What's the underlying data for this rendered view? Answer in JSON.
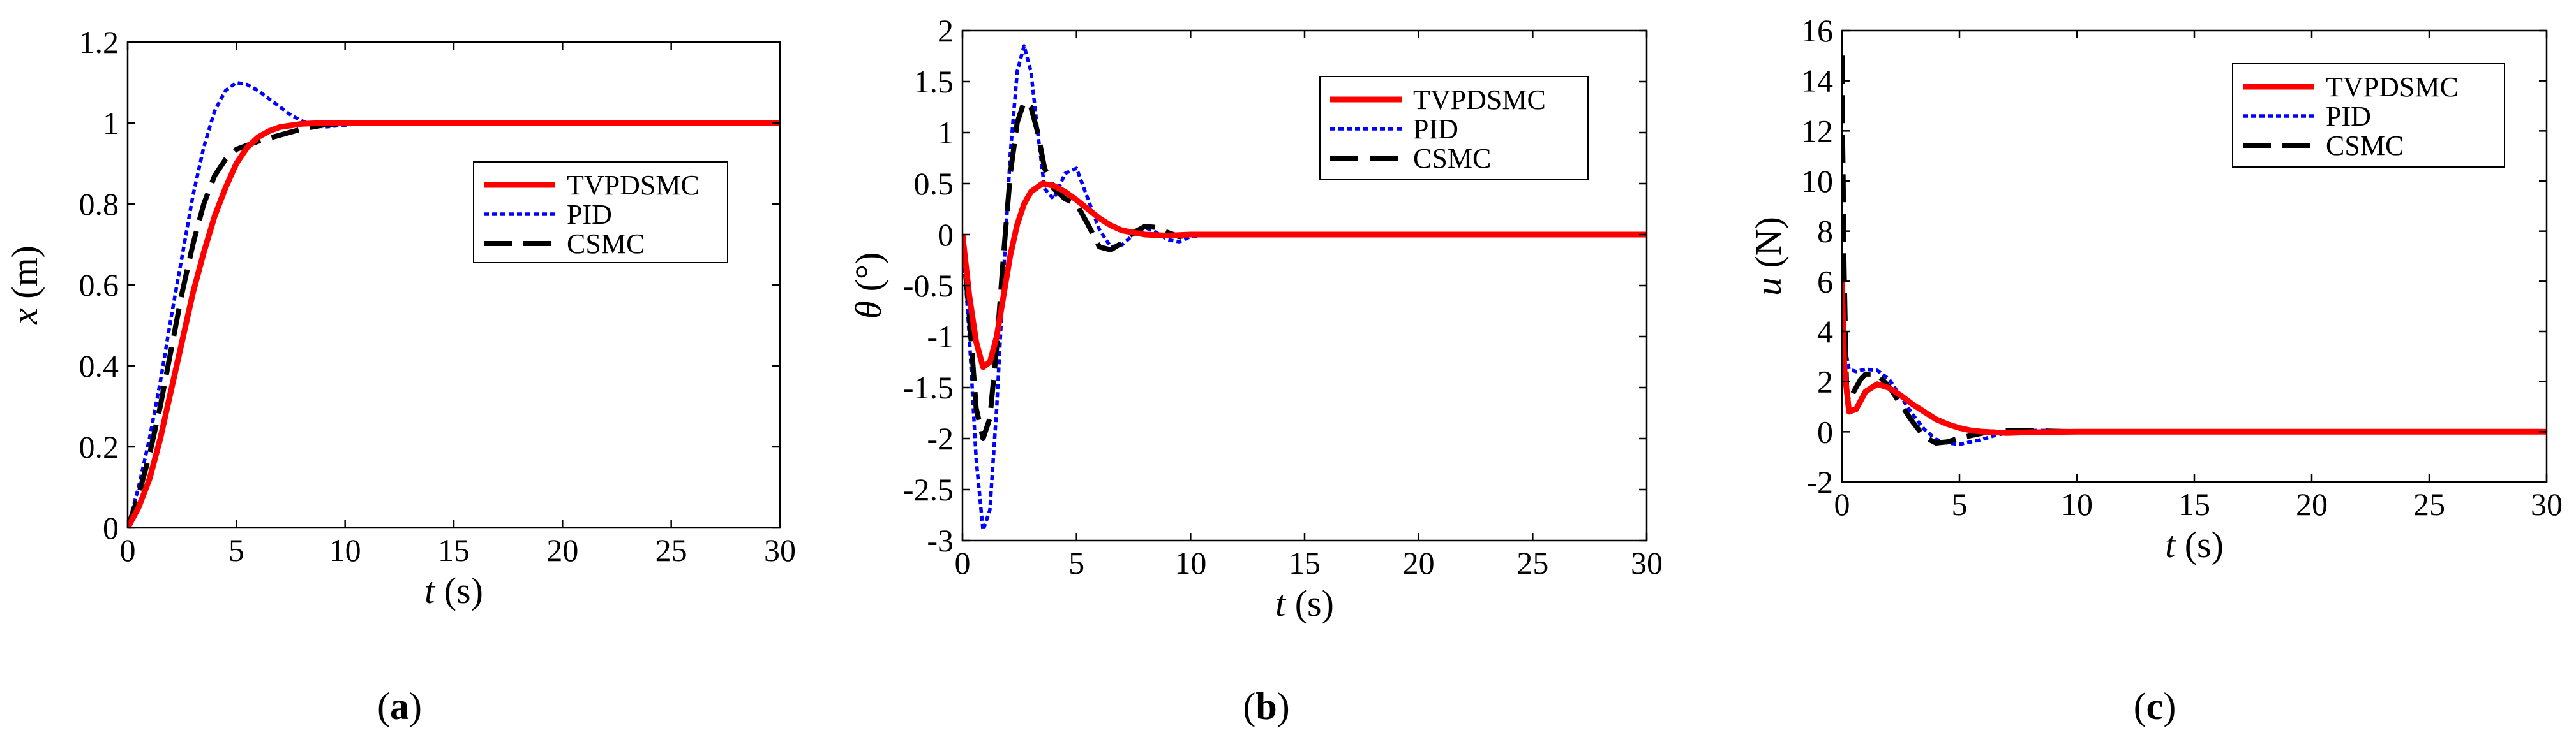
{
  "figure": {
    "colors": {
      "tvpdsmc": "#ff0000",
      "pid": "#0000ff",
      "csmc": "#000000"
    }
  },
  "chart_data": [
    {
      "type": "line",
      "panel": "(a)",
      "panel_letter": "a",
      "xlabel": "t",
      "xunit": "(s)",
      "ylabel": "x",
      "yunit": "(m)",
      "xlim": [
        0,
        30
      ],
      "ylim": [
        0,
        1.2
      ],
      "xticks": [
        0,
        5,
        10,
        15,
        20,
        25,
        30
      ],
      "xtick_labels": [
        "0",
        "5",
        "10",
        "15",
        "20",
        "25",
        "30"
      ],
      "yticks": [
        0,
        0.2,
        0.4,
        0.6,
        0.8,
        1,
        1.2
      ],
      "ytick_labels": [
        "0",
        "0.2",
        "0.4",
        "0.6",
        "0.8",
        "1",
        "1.2"
      ],
      "legend_position": "center-right",
      "series": [
        {
          "name": "TVPDSMC",
          "style": "solid",
          "x": [
            0,
            0.5,
            1,
            1.5,
            2,
            2.5,
            3,
            3.5,
            4,
            4.5,
            5,
            5.5,
            6,
            6.5,
            7,
            8,
            9,
            10,
            12,
            15,
            20,
            25,
            30
          ],
          "y": [
            0,
            0.05,
            0.12,
            0.22,
            0.34,
            0.46,
            0.58,
            0.68,
            0.77,
            0.84,
            0.9,
            0.94,
            0.965,
            0.98,
            0.99,
            0.998,
            1,
            1,
            1,
            1,
            1,
            1,
            1
          ]
        },
        {
          "name": "PID",
          "style": "dotted",
          "x": [
            0,
            0.5,
            1,
            1.5,
            2,
            2.5,
            3,
            3.5,
            4,
            4.5,
            5,
            5.5,
            6,
            6.5,
            7,
            7.5,
            8,
            9,
            10,
            11,
            12,
            15,
            20,
            25,
            30
          ],
          "y": [
            0,
            0.1,
            0.22,
            0.36,
            0.52,
            0.67,
            0.82,
            0.94,
            1.03,
            1.08,
            1.1,
            1.095,
            1.08,
            1.06,
            1.04,
            1.02,
            1.005,
            0.99,
            0.995,
            1,
            1,
            1,
            1,
            1,
            1
          ]
        },
        {
          "name": "CSMC",
          "style": "dashed",
          "x": [
            0,
            0.5,
            1,
            1.5,
            2,
            2.5,
            3,
            3.5,
            4,
            4.5,
            5,
            5.5,
            6,
            7,
            8,
            9,
            10,
            12,
            15,
            20,
            25,
            30
          ],
          "y": [
            0,
            0.08,
            0.18,
            0.3,
            0.44,
            0.58,
            0.7,
            0.8,
            0.87,
            0.91,
            0.935,
            0.945,
            0.955,
            0.97,
            0.985,
            0.995,
            1,
            1,
            1,
            1,
            1,
            1
          ]
        }
      ]
    },
    {
      "type": "line",
      "panel": "(b)",
      "panel_letter": "b",
      "xlabel": "t",
      "xunit": "(s)",
      "ylabel": "θ",
      "yunit": "(°)",
      "xlim": [
        0,
        30
      ],
      "ylim": [
        -3,
        2
      ],
      "xticks": [
        0,
        5,
        10,
        15,
        20,
        25,
        30
      ],
      "xtick_labels": [
        "0",
        "5",
        "10",
        "15",
        "20",
        "25",
        "30"
      ],
      "yticks": [
        -3,
        -2.5,
        -2,
        -1.5,
        -1,
        -0.5,
        0,
        0.5,
        1,
        1.5,
        2
      ],
      "ytick_labels": [
        "-3",
        "-2.5",
        "-2",
        "-1.5",
        "-1",
        "-0.5",
        "0",
        "0.5",
        "1",
        "1.5",
        "2"
      ],
      "legend_position": "top-right",
      "series": [
        {
          "name": "TVPDSMC",
          "style": "solid",
          "x": [
            0,
            0.3,
            0.6,
            0.9,
            1.2,
            1.5,
            1.8,
            2.1,
            2.4,
            2.7,
            3,
            3.5,
            4,
            4.5,
            5,
            5.5,
            6,
            6.5,
            7,
            8,
            9,
            10,
            12,
            15,
            20,
            25,
            30
          ],
          "y": [
            0,
            -0.6,
            -1.05,
            -1.3,
            -1.25,
            -1.0,
            -0.6,
            -0.2,
            0.1,
            0.3,
            0.42,
            0.5,
            0.48,
            0.42,
            0.34,
            0.25,
            0.16,
            0.09,
            0.04,
            0,
            -0.01,
            0,
            0,
            0,
            0,
            0,
            0
          ]
        },
        {
          "name": "PID",
          "style": "dotted",
          "x": [
            0,
            0.3,
            0.6,
            0.9,
            1.2,
            1.5,
            1.8,
            2.1,
            2.4,
            2.7,
            3,
            3.3,
            3.6,
            4,
            4.5,
            5,
            5.5,
            6,
            6.5,
            7,
            7.5,
            8,
            8.5,
            9,
            9.5,
            10,
            11,
            12,
            15,
            20,
            25,
            30
          ],
          "y": [
            0,
            -1.0,
            -2.2,
            -2.9,
            -2.7,
            -1.7,
            -0.4,
            0.8,
            1.6,
            1.85,
            1.6,
            1.0,
            0.45,
            0.35,
            0.6,
            0.65,
            0.35,
            0.05,
            -0.12,
            -0.1,
            0.0,
            0.07,
            0.02,
            -0.05,
            -0.07,
            -0.02,
            0,
            0,
            0,
            0,
            0,
            0
          ]
        },
        {
          "name": "CSMC",
          "style": "dashed",
          "x": [
            0,
            0.3,
            0.6,
            0.9,
            1.2,
            1.5,
            1.8,
            2.1,
            2.4,
            2.7,
            3,
            3.3,
            3.6,
            4,
            4.5,
            5,
            5.5,
            6,
            6.5,
            7,
            7.5,
            8,
            8.5,
            9,
            9.5,
            10,
            11,
            12,
            15,
            20,
            25,
            30
          ],
          "y": [
            0,
            -0.8,
            -1.7,
            -2.0,
            -1.8,
            -1.1,
            -0.2,
            0.6,
            1.1,
            1.3,
            1.25,
            1.0,
            0.65,
            0.45,
            0.35,
            0.3,
            0.1,
            -0.12,
            -0.15,
            -0.08,
            0.02,
            0.08,
            0.07,
            0.02,
            -0.02,
            0,
            0,
            0,
            0,
            0,
            0,
            0
          ]
        }
      ]
    },
    {
      "type": "line",
      "panel": "(c)",
      "panel_letter": "c",
      "xlabel": "t",
      "xunit": "(s)",
      "ylabel": "u",
      "yunit": "(N)",
      "xlim": [
        0,
        30
      ],
      "ylim": [
        -2,
        16
      ],
      "xticks": [
        0,
        5,
        10,
        15,
        20,
        25,
        30
      ],
      "xtick_labels": [
        "0",
        "5",
        "10",
        "15",
        "20",
        "25",
        "30"
      ],
      "yticks": [
        -2,
        0,
        2,
        4,
        6,
        8,
        10,
        12,
        14,
        16
      ],
      "ytick_labels": [
        "-2",
        "0",
        "2",
        "4",
        "6",
        "8",
        "10",
        "12",
        "14",
        "16"
      ],
      "legend_position": "top-right",
      "series": [
        {
          "name": "TVPDSMC",
          "style": "solid",
          "x": [
            0,
            0.1,
            0.3,
            0.6,
            1,
            1.5,
            2,
            2.5,
            3,
            3.5,
            4,
            4.5,
            5,
            5.5,
            6,
            7,
            8,
            10,
            15,
            20,
            25,
            30
          ],
          "y": [
            6,
            2.5,
            0.8,
            0.9,
            1.6,
            1.9,
            1.75,
            1.45,
            1.1,
            0.8,
            0.5,
            0.3,
            0.15,
            0.05,
            0,
            -0.05,
            -0.02,
            0,
            0,
            0,
            0,
            0
          ]
        },
        {
          "name": "PID",
          "style": "dotted",
          "x": [
            0,
            0.1,
            0.3,
            0.6,
            1,
            1.5,
            2,
            2.5,
            3,
            3.5,
            4,
            4.5,
            5,
            5.5,
            6,
            6.5,
            7,
            8,
            9,
            10,
            12,
            15,
            20,
            25,
            30
          ],
          "y": [
            5,
            3.5,
            2.5,
            2.4,
            2.5,
            2.45,
            2.1,
            1.4,
            0.7,
            0.1,
            -0.3,
            -0.45,
            -0.5,
            -0.4,
            -0.3,
            -0.15,
            -0.05,
            0.05,
            0.05,
            0.02,
            0,
            0,
            0,
            0,
            0
          ]
        },
        {
          "name": "CSMC",
          "style": "dashed",
          "x": [
            0,
            0.02,
            0.05,
            0.08,
            0.12,
            0.16,
            0.2,
            0.3,
            0.5,
            0.8,
            1,
            1.5,
            2,
            2.5,
            3,
            3.5,
            4,
            4.5,
            5,
            6,
            7,
            8,
            9,
            10,
            12,
            15,
            20,
            25,
            30
          ],
          "y": [
            15,
            12,
            10,
            7,
            5,
            3,
            1.5,
            1.2,
            1.6,
            2.1,
            2.3,
            2.3,
            1.8,
            1.1,
            0.4,
            -0.2,
            -0.45,
            -0.4,
            -0.25,
            -0.05,
            0.05,
            0.05,
            0.02,
            0,
            0,
            0,
            0,
            0,
            0
          ]
        }
      ]
    }
  ]
}
